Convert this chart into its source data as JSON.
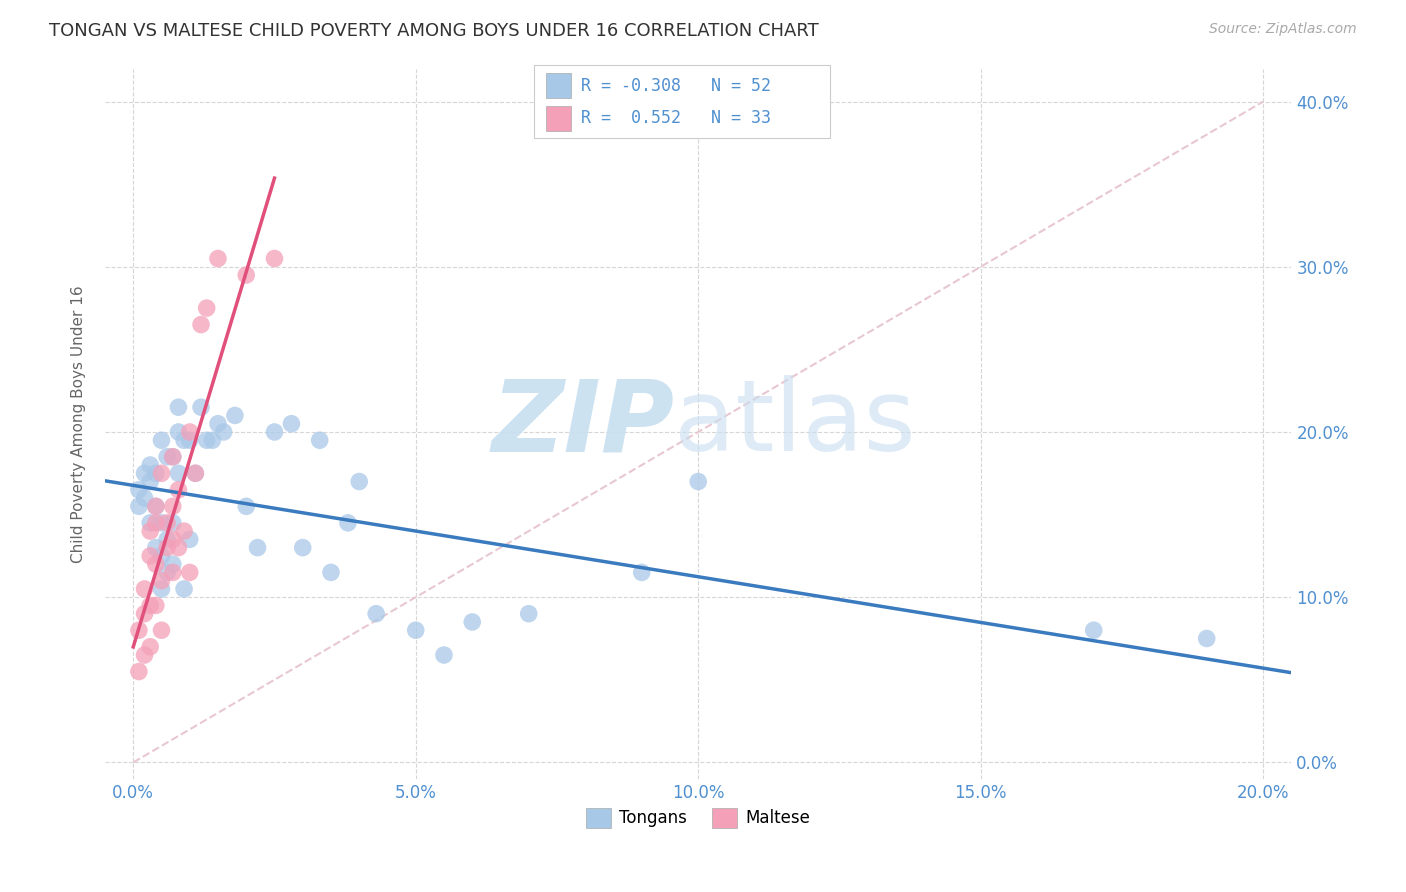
{
  "title": "TONGAN VS MALTESE CHILD POVERTY AMONG BOYS UNDER 16 CORRELATION CHART",
  "source": "Source: ZipAtlas.com",
  "ylabel": "Child Poverty Among Boys Under 16",
  "tongan_R": "-0.308",
  "tongan_N": "52",
  "maltese_R": "0.552",
  "maltese_N": "33",
  "tongan_color": "#a8c8e8",
  "maltese_color": "#f4a0b8",
  "tongan_line_color": "#3a7abf",
  "maltese_line_color": "#e0507a",
  "diag_line_color": "#cccccc",
  "background_color": "#ffffff",
  "grid_color": "#cccccc",
  "axis_label_color": "#5090d0",
  "xmin": 0.0,
  "xmax": 0.2,
  "ymin": 0.0,
  "ymax": 0.4,
  "tongan_x": [
    0.001,
    0.001,
    0.002,
    0.002,
    0.003,
    0.003,
    0.003,
    0.004,
    0.004,
    0.004,
    0.005,
    0.005,
    0.005,
    0.005,
    0.006,
    0.006,
    0.006,
    0.007,
    0.007,
    0.007,
    0.008,
    0.008,
    0.008,
    0.009,
    0.009,
    0.01,
    0.01,
    0.011,
    0.012,
    0.013,
    0.014,
    0.015,
    0.016,
    0.018,
    0.02,
    0.022,
    0.025,
    0.028,
    0.03,
    0.033,
    0.035,
    0.038,
    0.04,
    0.043,
    0.05,
    0.055,
    0.06,
    0.07,
    0.09,
    0.1,
    0.17,
    0.19
  ],
  "tongan_y": [
    0.155,
    0.165,
    0.16,
    0.175,
    0.145,
    0.17,
    0.18,
    0.13,
    0.155,
    0.175,
    0.105,
    0.125,
    0.145,
    0.195,
    0.115,
    0.135,
    0.185,
    0.12,
    0.145,
    0.185,
    0.175,
    0.2,
    0.215,
    0.105,
    0.195,
    0.135,
    0.195,
    0.175,
    0.215,
    0.195,
    0.195,
    0.205,
    0.2,
    0.21,
    0.155,
    0.13,
    0.2,
    0.205,
    0.13,
    0.195,
    0.115,
    0.145,
    0.17,
    0.09,
    0.08,
    0.065,
    0.085,
    0.09,
    0.115,
    0.17,
    0.08,
    0.075
  ],
  "maltese_x": [
    0.001,
    0.001,
    0.002,
    0.002,
    0.002,
    0.003,
    0.003,
    0.003,
    0.003,
    0.004,
    0.004,
    0.004,
    0.004,
    0.005,
    0.005,
    0.005,
    0.006,
    0.006,
    0.007,
    0.007,
    0.007,
    0.007,
    0.008,
    0.008,
    0.009,
    0.01,
    0.01,
    0.011,
    0.012,
    0.013,
    0.015,
    0.02,
    0.025
  ],
  "maltese_y": [
    0.055,
    0.08,
    0.065,
    0.09,
    0.105,
    0.07,
    0.095,
    0.125,
    0.14,
    0.095,
    0.12,
    0.145,
    0.155,
    0.08,
    0.11,
    0.175,
    0.13,
    0.145,
    0.115,
    0.135,
    0.155,
    0.185,
    0.13,
    0.165,
    0.14,
    0.115,
    0.2,
    0.175,
    0.265,
    0.275,
    0.305,
    0.295,
    0.305
  ]
}
